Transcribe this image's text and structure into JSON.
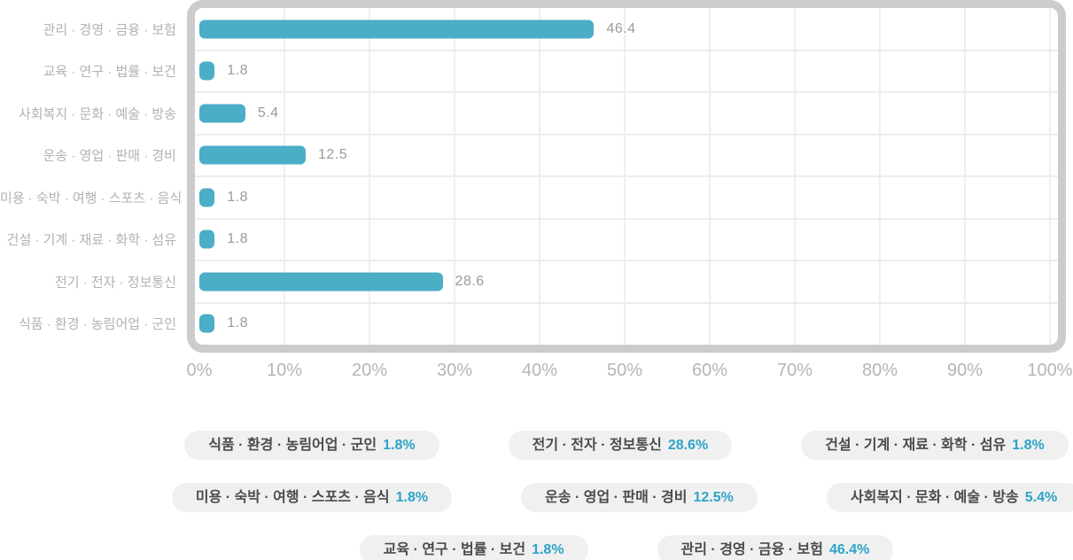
{
  "chart_data": {
    "type": "bar",
    "orientation": "horizontal",
    "title": "",
    "xlabel": "",
    "ylabel": "",
    "categories": [
      "관리 · 경영 · 금융 · 보험",
      "교육 · 연구 · 법률 · 보건",
      "사회복지 · 문화 · 예술 · 방송",
      "운송 · 영업 · 판매 · 경비",
      "미용 · 숙박 · 여행 · 스포츠 · 음식",
      "건설 · 기계 · 재료 · 화학 · 섬유",
      "전기 · 전자 · 정보통신",
      "식품 · 환경 · 농림어업 · 군인"
    ],
    "values": [
      46.4,
      1.8,
      5.4,
      12.5,
      1.8,
      1.8,
      28.6,
      1.8
    ],
    "value_labels": [
      "46.4",
      "1.8",
      "5.4",
      "12.5",
      "1.8",
      "1.8",
      "28.6",
      "1.8"
    ],
    "unit": "%",
    "x_ticks": [
      "0%",
      "10%",
      "20%",
      "30%",
      "40%",
      "50%",
      "60%",
      "70%",
      "80%",
      "90%",
      "100%"
    ],
    "xlim": [
      0,
      100
    ],
    "grid": true,
    "bar_color": "#4baec6",
    "legend_position": "bottom"
  },
  "legend": {
    "rows": [
      [
        {
          "label": "식품 · 환경 · 농림어업 · 군인",
          "value": "1.8%"
        },
        {
          "label": "전기 · 전자 · 정보통신",
          "value": "28.6%"
        },
        {
          "label": "건설 · 기계 · 재료 · 화학 · 섬유",
          "value": "1.8%"
        }
      ],
      [
        {
          "label": "미용 · 숙박 · 여행 · 스포츠 · 음식",
          "value": "1.8%"
        },
        {
          "label": "운송 · 영업 · 판매 · 경비",
          "value": "12.5%"
        },
        {
          "label": "사회복지 · 문화 · 예술 · 방송",
          "value": "5.4%"
        }
      ],
      [
        {
          "label": "교육 · 연구 · 법률 · 보건",
          "value": "1.8%"
        },
        {
          "label": "관리 · 경영 · 금융 · 보험",
          "value": "46.4%"
        }
      ]
    ]
  },
  "colors": {
    "bar": "#4baec6",
    "legend_value": "#2da4c8",
    "frame": "#cccccc",
    "grid": "#efefef",
    "category_label": "#b2b2b2",
    "axis_label": "#b5b5b5",
    "bar_value_label": "#9b9b9b",
    "pill_background": "#f0f0f0",
    "pill_text": "#4b4b4b"
  }
}
